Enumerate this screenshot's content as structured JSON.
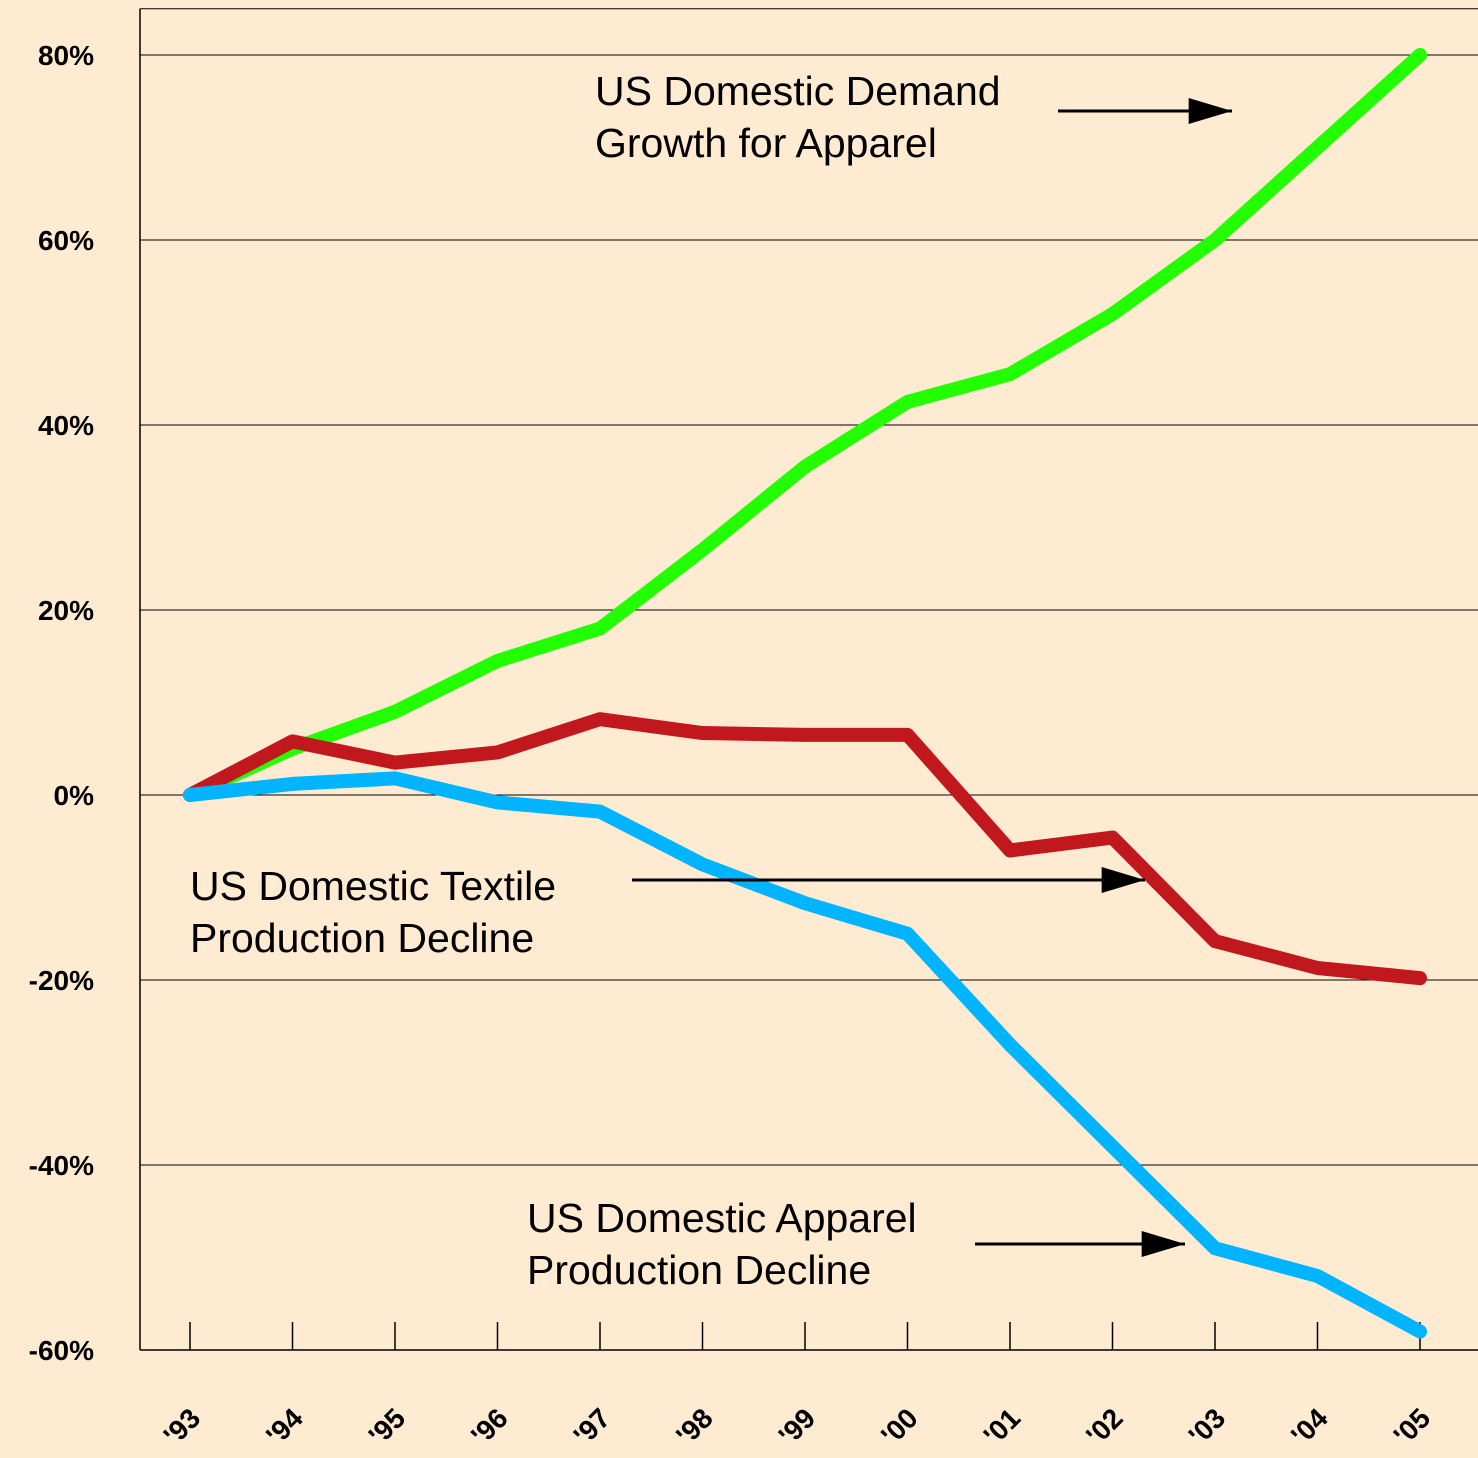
{
  "chart_data": {
    "type": "line",
    "categories": [
      "'93",
      "'94",
      "'95",
      "'96",
      "'97",
      "'98",
      "'99",
      "'00",
      "'01",
      "'02",
      "'03",
      "'04",
      "'05"
    ],
    "series": [
      {
        "color": "#22ff00",
        "values": [
          0,
          5,
          9,
          14.5,
          18,
          26.5,
          35.5,
          42.5,
          45.5,
          52,
          60,
          70,
          80
        ]
      },
      {
        "color": "#c0181c",
        "values": [
          0,
          5.8,
          3.5,
          4.6,
          8.2,
          6.7,
          6.5,
          6.5,
          -6,
          -4.6,
          -15.8,
          -18.7,
          -19.8
        ]
      },
      {
        "color": "#00b4ff",
        "values": [
          0,
          1.2,
          1.8,
          -0.8,
          -1.8,
          -7.5,
          -11.7,
          -15,
          -27,
          -38,
          -49,
          -52,
          -58
        ]
      }
    ],
    "ylim": [
      -60,
      85
    ],
    "yticks": [
      {
        "value": -60,
        "label": "-60%"
      },
      {
        "value": -40,
        "label": "-40%"
      },
      {
        "value": -20,
        "label": "-20%"
      },
      {
        "value": 0,
        "label": "0%"
      },
      {
        "value": 20,
        "label": "20%"
      },
      {
        "value": 40,
        "label": "40%"
      },
      {
        "value": 60,
        "label": "60%"
      },
      {
        "value": 80,
        "label": "80%"
      }
    ],
    "grid": true,
    "annotations": [
      {
        "lines": [
          "US Domestic Demand",
          "Growth for Apparel"
        ]
      },
      {
        "lines": [
          "US Domestic Textile",
          "Production Decline"
        ]
      },
      {
        "lines": [
          "US Domestic Apparel",
          "Production Decline"
        ]
      }
    ]
  }
}
